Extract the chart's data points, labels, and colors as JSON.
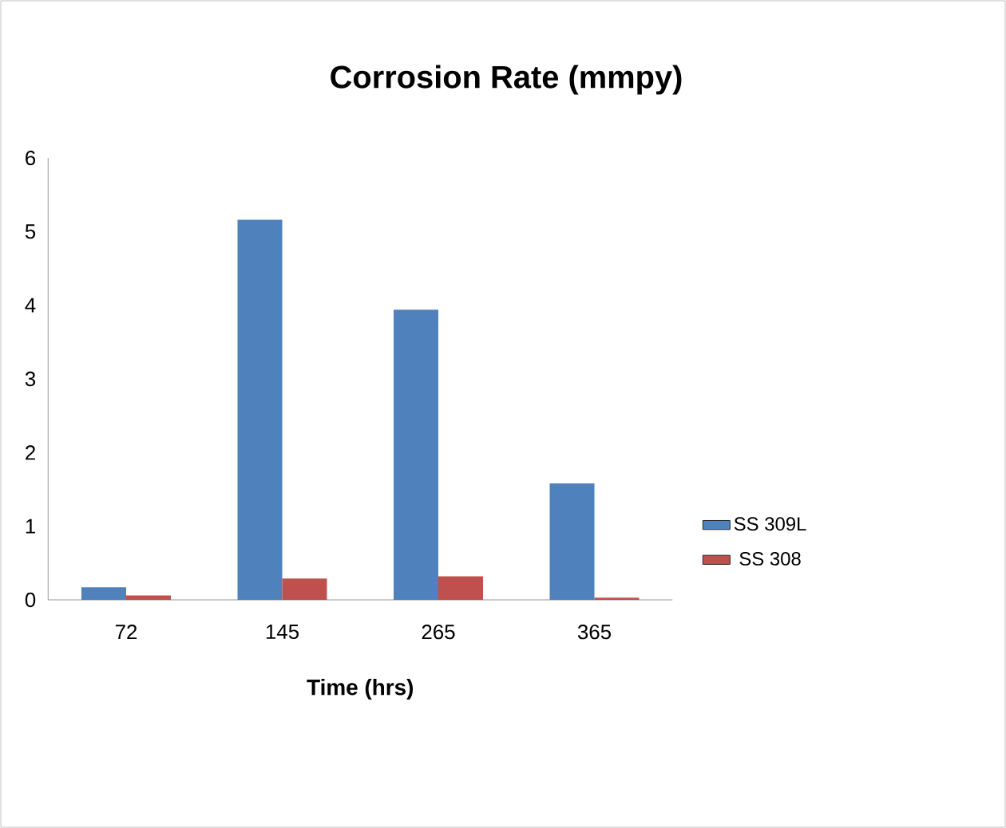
{
  "chart_data": {
    "type": "bar",
    "title": "Corrosion Rate (mmpy)",
    "xlabel": "Time (hrs)",
    "categories": [
      "72",
      "145",
      "265",
      "365"
    ],
    "series": [
      {
        "name": "SS 309L",
        "color": "#4f81bd",
        "values": [
          0.17,
          5.16,
          3.94,
          1.58
        ]
      },
      {
        "name": "SS 308",
        "color": "#c0504d",
        "values": [
          0.06,
          0.29,
          0.32,
          0.03
        ]
      }
    ],
    "ylim": [
      0,
      6
    ],
    "yticks": [
      0,
      1,
      2,
      3,
      4,
      5,
      6
    ],
    "grid": false,
    "legend": "right"
  }
}
